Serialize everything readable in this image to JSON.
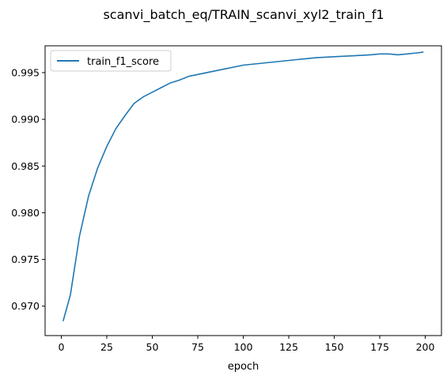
{
  "chart_data": {
    "type": "line",
    "title": "scanvi_batch_eq/TRAIN_scanvi_xyl2_train_f1",
    "xlabel": "epoch",
    "ylabel": "",
    "xlim": [
      -8.9,
      208.9
    ],
    "ylim": [
      0.96685,
      0.99787
    ],
    "xticks": [
      0,
      25,
      50,
      75,
      100,
      125,
      150,
      175,
      200
    ],
    "yticks": [
      0.97,
      0.975,
      0.98,
      0.985,
      0.99,
      0.995
    ],
    "ytick_labels": [
      "0.970",
      "0.975",
      "0.980",
      "0.985",
      "0.990",
      "0.995"
    ],
    "grid": false,
    "legend_position": "upper-left",
    "series": [
      {
        "name": "train_f1_score",
        "color": "#1f77b4",
        "x": [
          1,
          5,
          10,
          15,
          20,
          25,
          30,
          35,
          40,
          45,
          50,
          55,
          60,
          65,
          70,
          75,
          80,
          85,
          90,
          95,
          100,
          110,
          120,
          130,
          140,
          150,
          160,
          170,
          175,
          180,
          185,
          190,
          195,
          199
        ],
        "y": [
          0.9684,
          0.9712,
          0.9775,
          0.9818,
          0.9848,
          0.9871,
          0.989,
          0.9904,
          0.9917,
          0.9924,
          0.9929,
          0.9934,
          0.9939,
          0.9942,
          0.9946,
          0.9948,
          0.995,
          0.9952,
          0.9954,
          0.9956,
          0.9958,
          0.996,
          0.9962,
          0.9964,
          0.9966,
          0.9967,
          0.9968,
          0.9969,
          0.997,
          0.997,
          0.9969,
          0.997,
          0.9971,
          0.9972
        ]
      }
    ]
  }
}
